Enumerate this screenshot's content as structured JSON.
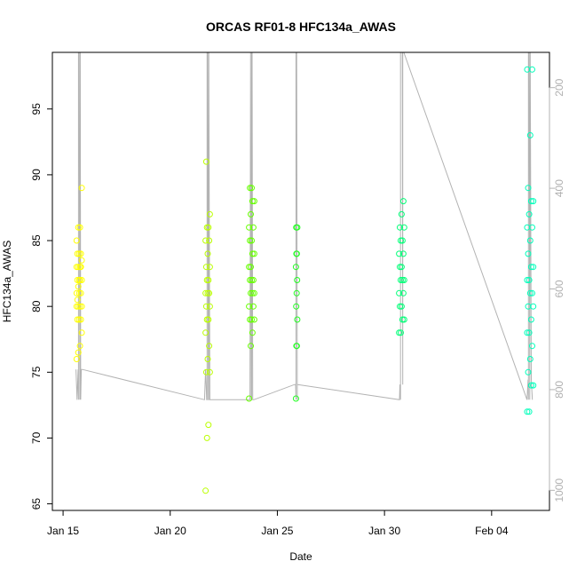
{
  "chart_data": {
    "type": "scatter",
    "title": "ORCAS RF01-8 HFC134a_AWAS",
    "xlabel": "Date",
    "ylabel": "HFC134a_AWAS",
    "x_ticks": [
      "Jan 15",
      "Jan 20",
      "Jan 25",
      "Jan 30",
      "Feb 04"
    ],
    "xlim": [
      -0.5,
      22.7
    ],
    "ylim": [
      64.5,
      99.3
    ],
    "y_ticks": [
      65,
      70,
      75,
      80,
      85,
      90,
      95
    ],
    "y2_ticks": [
      200,
      400,
      600,
      800,
      1000
    ],
    "y2lim": [
      1040,
      130
    ],
    "grid": false,
    "colors": {
      "line": "#b3b3b3",
      "axis": "#000000",
      "y2_axis": "#b3b3b3",
      "flight_1": "#ffff00",
      "flight_2": "#bbff00",
      "flight_3": "#66ff00",
      "flight_4": "#22ff22",
      "flight_5": "#00ff77",
      "flight_6": "#00ffbb"
    },
    "series": [
      {
        "x_center": 0.75,
        "x_spread": 0.12,
        "color": "#ffff00",
        "y": [
          76,
          76.5,
          77,
          78,
          79,
          79,
          79,
          80,
          80,
          80,
          80,
          80.5,
          81,
          81,
          81,
          81.5,
          82,
          82,
          82,
          82,
          83,
          83,
          83,
          83,
          83.5,
          84,
          84,
          84,
          85,
          86,
          86,
          89
        ]
      },
      {
        "x_center": 6.75,
        "x_spread": 0.1,
        "color": "#bbff00",
        "y": [
          66,
          70,
          71,
          75,
          75,
          76,
          77,
          78,
          79,
          79,
          80,
          80,
          81,
          81,
          81,
          82,
          82,
          83,
          83,
          84,
          85,
          85,
          86,
          86,
          87,
          91
        ]
      },
      {
        "x_center": 8.8,
        "x_spread": 0.12,
        "color": "#66ff00",
        "y": [
          73,
          77,
          78,
          79,
          79,
          79,
          80,
          80,
          81,
          81,
          81,
          82,
          82,
          82,
          83,
          83,
          84,
          84,
          85,
          85,
          86,
          86,
          87,
          88,
          88,
          89,
          89
        ]
      },
      {
        "x_center": 10.9,
        "x_spread": 0.03,
        "color": "#22ff22",
        "y": [
          73,
          77,
          77,
          79,
          80,
          81,
          82,
          83,
          84,
          84,
          86,
          86
        ]
      },
      {
        "x_center": 15.8,
        "x_spread": 0.12,
        "color": "#00ff77",
        "y": [
          78,
          78,
          79,
          79,
          80,
          80,
          81,
          81,
          82,
          82,
          82,
          83,
          83,
          84,
          84,
          85,
          85,
          86,
          86,
          87,
          88
        ]
      },
      {
        "x_center": 21.8,
        "x_spread": 0.14,
        "color": "#00ffbb",
        "y": [
          72,
          72,
          74,
          74,
          75,
          76,
          77,
          78,
          78,
          79,
          80,
          80,
          81,
          81,
          82,
          82,
          83,
          83,
          84,
          85,
          86,
          86,
          87,
          88,
          88,
          89,
          93,
          98,
          98
        ]
      }
    ],
    "altitude_line": {
      "x": [
        0.6,
        0.65,
        0.7,
        0.72,
        0.72,
        0.75,
        0.78,
        0.8,
        0.8,
        0.82,
        0.85,
        0.9,
        6.6,
        6.65,
        6.7,
        6.72,
        6.72,
        6.75,
        6.78,
        6.8,
        6.8,
        6.85,
        6.9,
        8.7,
        8.72,
        8.75,
        8.78,
        8.8,
        8.8,
        8.82,
        8.85,
        8.9,
        10.8,
        10.85,
        10.87,
        10.87,
        10.9,
        10.93,
        10.93,
        10.95,
        15.7,
        15.72,
        15.75,
        15.75,
        15.8,
        15.83,
        15.85,
        15.85,
        15.9,
        21.65,
        21.7,
        21.72,
        21.72,
        21.75,
        21.78,
        21.8,
        21.8,
        21.85,
        21.9
      ],
      "y2": [
        760,
        820,
        760,
        820,
        130,
        130,
        820,
        760,
        130,
        820,
        760,
        760,
        820,
        760,
        820,
        820,
        130,
        130,
        820,
        820,
        130,
        820,
        820,
        820,
        820,
        130,
        820,
        820,
        130,
        130,
        820,
        820,
        790,
        790,
        820,
        130,
        130,
        820,
        790,
        790,
        820,
        790,
        820,
        130,
        130,
        130,
        790,
        130,
        130,
        820,
        780,
        820,
        130,
        130,
        820,
        130,
        130,
        780,
        820
      ]
    }
  }
}
